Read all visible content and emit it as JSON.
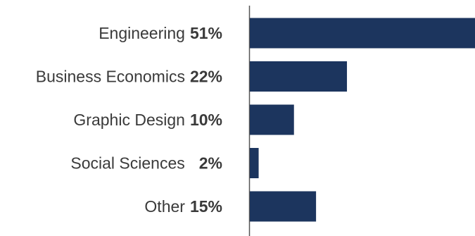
{
  "chart_data": {
    "type": "bar",
    "orientation": "horizontal",
    "categories": [
      "Engineering",
      "Business Economics",
      "Graphic Design",
      "Social Sciences",
      "Other"
    ],
    "values": [
      51,
      22,
      10,
      2,
      15
    ],
    "value_labels": [
      "51%",
      "22%",
      "10%",
      "2%",
      "15%"
    ],
    "title": "",
    "xlabel": "",
    "ylabel": "",
    "grid": false,
    "legend": "none",
    "bar_color": "#1c355e",
    "axis_color": "#555555"
  }
}
